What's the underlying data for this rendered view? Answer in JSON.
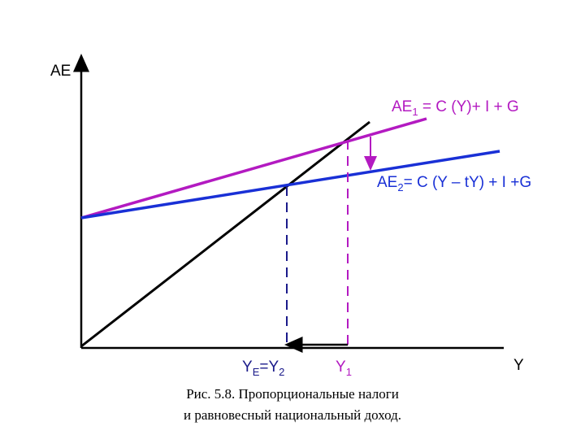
{
  "axes": {
    "y_label": "AE",
    "x_label": "Y"
  },
  "curves": {
    "ae1": {
      "label_prefix": "AE",
      "label_sub": "1",
      "label_rest": " = C (Y)+ I + G",
      "color": "#b31ac1"
    },
    "ae2": {
      "label_prefix": "AE",
      "label_sub": "2",
      "label_rest": "= C (Y – tY) + I +G",
      "color": "#1930d6"
    },
    "diagonal_color": "#000000"
  },
  "x_markers": {
    "ye": {
      "main": "Y",
      "sub1": "E",
      "mid": "=Y",
      "sub2": "2",
      "color": "#1a1a8a"
    },
    "y1": {
      "main": "Y",
      "sub": "1",
      "color": "#b31ac1"
    }
  },
  "caption": {
    "line1": "Рис. 5.8. Пропорциональные налоги",
    "line2": "и равновесный национальный доход."
  }
}
